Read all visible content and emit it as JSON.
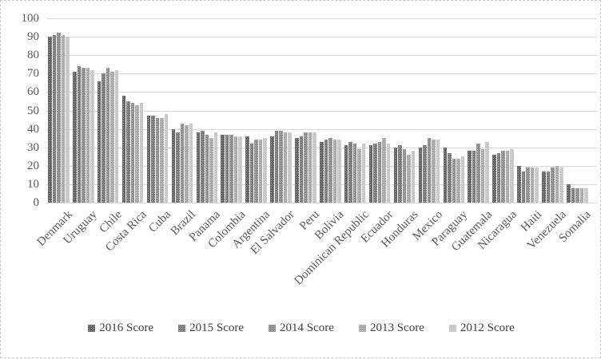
{
  "chart_data": {
    "type": "bar",
    "title": "",
    "xlabel": "",
    "ylabel": "",
    "ylim": [
      0,
      100
    ],
    "ytick_step": 10,
    "grid": true,
    "legend_position": "bottom",
    "categories": [
      "Denmark",
      "Uruguay",
      "Chile",
      "Costa Rica",
      "Cuba",
      "Brazil",
      "Panama",
      "Colombia",
      "Argentina",
      "El Salvador",
      "Peru",
      "Bolivia",
      "Dominican Republic",
      "Ecuador",
      "Honduras",
      "Mexico",
      "Paraguay",
      "Guatemala",
      "Nicaragua",
      "Haiti",
      "Venezuela",
      "Somalia"
    ],
    "series": [
      {
        "name": "2016 Score",
        "color": "#656565",
        "values": [
          90,
          71,
          66,
          58,
          47,
          40,
          38,
          37,
          36,
          36,
          35,
          33,
          31,
          31,
          30,
          30,
          30,
          28,
          26,
          20,
          17,
          10
        ]
      },
      {
        "name": "2015 Score",
        "color": "#7b7b7b",
        "values": [
          91,
          74,
          70,
          55,
          47,
          38,
          39,
          37,
          32,
          39,
          36,
          34,
          33,
          32,
          31,
          31,
          27,
          28,
          27,
          17,
          17,
          8
        ]
      },
      {
        "name": "2014 Score",
        "color": "#8f8f8f",
        "values": [
          92,
          73,
          73,
          54,
          46,
          43,
          37,
          37,
          34,
          39,
          38,
          35,
          32,
          33,
          29,
          35,
          24,
          32,
          28,
          19,
          19,
          8
        ]
      },
      {
        "name": "2013 Score",
        "color": "#a9a9a9",
        "values": [
          91,
          73,
          71,
          53,
          46,
          42,
          35,
          36,
          34,
          38,
          38,
          34,
          29,
          35,
          26,
          34,
          24,
          29,
          28,
          19,
          20,
          8
        ]
      },
      {
        "name": "2012 Score",
        "color": "#c7c7c7",
        "values": [
          90,
          72,
          72,
          54,
          48,
          43,
          38,
          36,
          35,
          38,
          38,
          34,
          32,
          32,
          28,
          34,
          25,
          33,
          29,
          19,
          19,
          8
        ]
      }
    ],
    "yticks": [
      0,
      10,
      20,
      30,
      40,
      50,
      60,
      70,
      80,
      90,
      100
    ]
  },
  "colors": {
    "background": "#ffffff",
    "border": "#c6c6c6",
    "gridline": "#d9d9d9",
    "axis_text": "#595959",
    "legend_text": "#404040"
  }
}
